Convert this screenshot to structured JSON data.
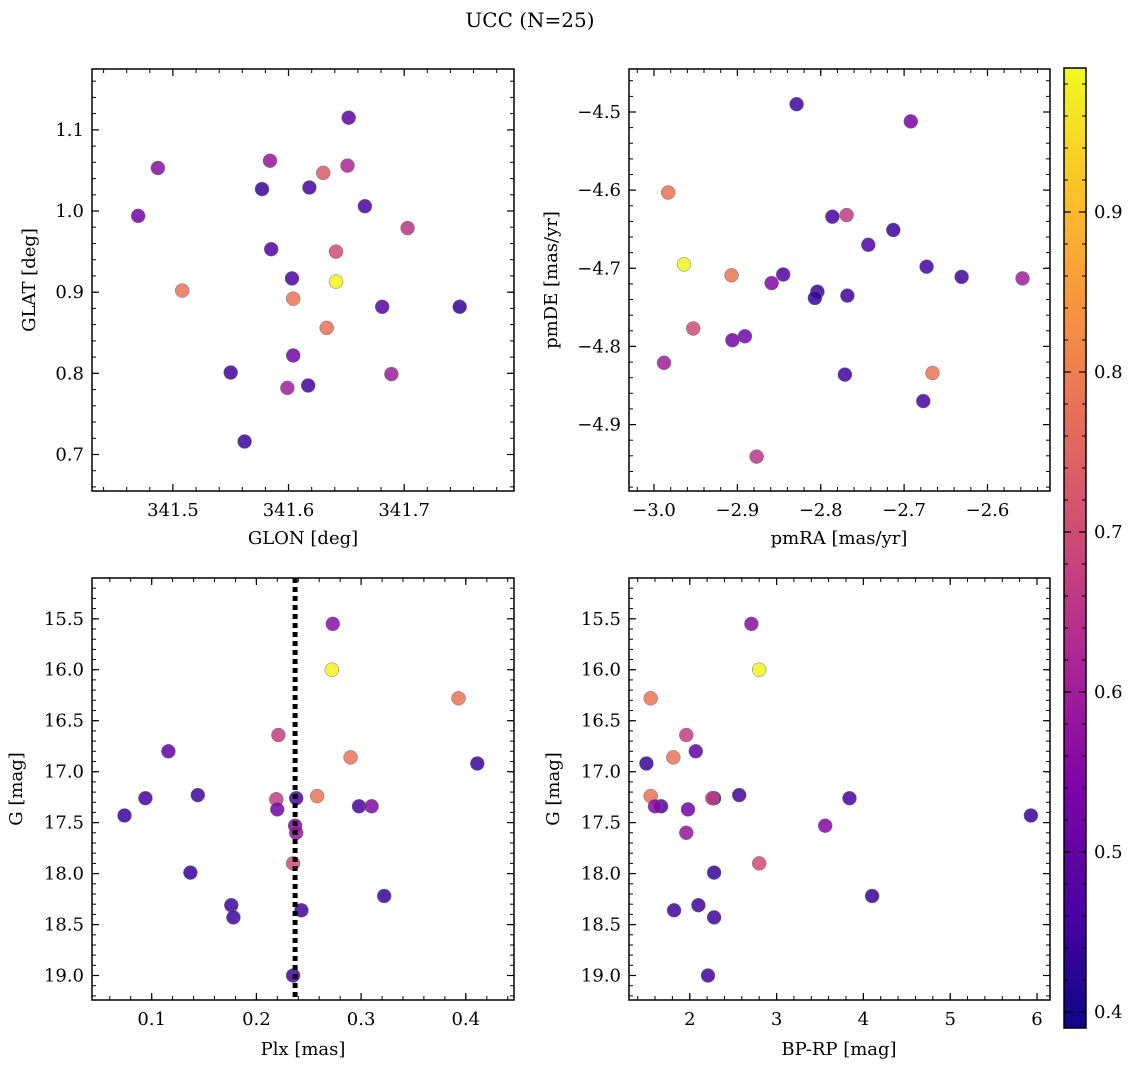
{
  "chart_data": [
    {
      "type": "scatter",
      "id": "p1",
      "title": "UCC (N=25)",
      "xlabel": "GLON [deg]",
      "ylabel": "GLAT [deg]",
      "xlim": [
        341.43,
        341.795
      ],
      "ylim": [
        0.655,
        1.175
      ],
      "xticks": [
        341.5,
        341.6,
        341.7
      ],
      "xticklabels": [
        "341.5",
        "341.6",
        "341.7"
      ],
      "yticks": [
        0.7,
        0.8,
        0.9,
        1.0,
        1.1
      ],
      "yticklabels": [
        "0.7",
        "0.8",
        "0.9",
        "1.0",
        "1.1"
      ],
      "x": [
        341.508,
        341.562,
        341.603,
        341.63,
        341.641,
        341.604,
        341.55,
        341.604,
        341.666,
        341.618,
        341.47,
        341.487,
        341.599,
        341.633,
        341.584,
        341.651,
        341.748,
        341.585,
        341.577,
        341.681,
        341.703,
        341.689,
        341.652,
        341.617,
        341.641
      ],
      "y": [
        0.902,
        0.716,
        0.917,
        1.047,
        0.913,
        0.892,
        0.801,
        0.822,
        1.006,
        1.029,
        0.994,
        1.053,
        0.782,
        0.856,
        1.062,
        1.056,
        0.882,
        0.953,
        1.027,
        0.882,
        0.979,
        0.799,
        1.115,
        0.785,
        0.95
      ],
      "prob": [
        0.78,
        0.44,
        0.47,
        0.73,
        0.98,
        0.78,
        0.45,
        0.52,
        0.46,
        0.46,
        0.52,
        0.56,
        0.6,
        0.77,
        0.58,
        0.62,
        0.43,
        0.47,
        0.44,
        0.48,
        0.65,
        0.6,
        0.49,
        0.45,
        0.7
      ]
    },
    {
      "type": "scatter",
      "id": "p2",
      "xlabel": "pmRA [mas/yr]",
      "ylabel": "pmDE [mas/yr]",
      "xlim": [
        -3.03,
        -2.525
      ],
      "ylim": [
        -4.985,
        -4.445
      ],
      "xticks": [
        -3.0,
        -2.9,
        -2.8,
        -2.7,
        -2.6
      ],
      "xticklabels": [
        "−3.0",
        "−2.9",
        "−2.8",
        "−2.7",
        "−2.6"
      ],
      "yticks": [
        -4.9,
        -4.8,
        -4.7,
        -4.6,
        -4.5
      ],
      "yticklabels": [
        "−4.9",
        "−4.8",
        "−4.7",
        "−4.6",
        "−4.5"
      ],
      "x": [
        -2.829,
        -2.692,
        -2.983,
        -2.786,
        -2.769,
        -2.713,
        -2.743,
        -2.964,
        -2.907,
        -2.673,
        -2.631,
        -2.558,
        -2.845,
        -2.859,
        -2.804,
        -2.807,
        -2.768,
        -2.953,
        -2.906,
        -2.891,
        -2.988,
        -2.771,
        -2.666,
        -2.677,
        -2.877
      ],
      "y": [
        -4.49,
        -4.512,
        -4.603,
        -4.634,
        -4.632,
        -4.651,
        -4.67,
        -4.695,
        -4.709,
        -4.698,
        -4.711,
        -4.713,
        -4.708,
        -4.719,
        -4.73,
        -4.738,
        -4.735,
        -4.777,
        -4.792,
        -4.787,
        -4.821,
        -4.836,
        -4.834,
        -4.87,
        -4.941
      ],
      "prob": [
        0.45,
        0.53,
        0.78,
        0.46,
        0.66,
        0.44,
        0.47,
        0.98,
        0.78,
        0.46,
        0.45,
        0.6,
        0.47,
        0.55,
        0.44,
        0.44,
        0.45,
        0.7,
        0.52,
        0.52,
        0.6,
        0.45,
        0.78,
        0.46,
        0.65
      ]
    },
    {
      "type": "scatter",
      "id": "p3",
      "xlabel": "Plx [mas]",
      "ylabel": "G [mag]",
      "xlim": [
        0.043,
        0.446
      ],
      "ylim": [
        19.24,
        15.1
      ],
      "xticks": [
        0.1,
        0.2,
        0.3,
        0.4
      ],
      "xticklabels": [
        "0.1",
        "0.2",
        "0.3",
        "0.4"
      ],
      "yticks": [
        15.5,
        16.0,
        16.5,
        17.0,
        17.5,
        18.0,
        18.5,
        19.0
      ],
      "yticklabels": [
        "15.5",
        "16.0",
        "16.5",
        "17.0",
        "17.5",
        "18.0",
        "18.5",
        "19.0"
      ],
      "vline": 0.237,
      "x": [
        0.273,
        0.272,
        0.393,
        0.221,
        0.116,
        0.411,
        0.29,
        0.144,
        0.094,
        0.258,
        0.219,
        0.238,
        0.074,
        0.22,
        0.298,
        0.31,
        0.237,
        0.238,
        0.235,
        0.137,
        0.176,
        0.322,
        0.243,
        0.178,
        0.235
      ],
      "y": [
        15.55,
        16.0,
        16.28,
        16.64,
        16.8,
        16.92,
        16.86,
        17.23,
        17.26,
        17.24,
        17.27,
        17.26,
        17.43,
        17.37,
        17.34,
        17.34,
        17.53,
        17.6,
        17.9,
        17.99,
        18.31,
        18.22,
        18.36,
        18.43,
        19.0
      ],
      "prob": [
        0.56,
        0.98,
        0.78,
        0.67,
        0.5,
        0.44,
        0.78,
        0.45,
        0.46,
        0.78,
        0.67,
        0.46,
        0.44,
        0.52,
        0.46,
        0.55,
        0.55,
        0.58,
        0.7,
        0.44,
        0.45,
        0.44,
        0.45,
        0.45,
        0.45
      ]
    },
    {
      "type": "scatter",
      "id": "p4",
      "xlabel": "BP-RP [mag]",
      "ylabel": "G [mag]",
      "xlim": [
        1.3,
        6.15
      ],
      "ylim": [
        19.24,
        15.1
      ],
      "xticks": [
        2,
        3,
        4,
        5,
        6
      ],
      "xticklabels": [
        "2",
        "3",
        "4",
        "5",
        "6"
      ],
      "yticks": [
        15.5,
        16.0,
        16.5,
        17.0,
        17.5,
        18.0,
        18.5,
        19.0
      ],
      "yticklabels": [
        "15.5",
        "16.0",
        "16.5",
        "17.0",
        "17.5",
        "18.0",
        "18.5",
        "19.0"
      ],
      "x": [
        2.71,
        2.8,
        1.55,
        1.96,
        2.07,
        1.5,
        1.81,
        2.57,
        1.55,
        2.28,
        2.26,
        3.84,
        5.93,
        1.98,
        1.67,
        1.6,
        3.56,
        1.96,
        2.8,
        2.28,
        2.1,
        4.1,
        1.82,
        2.28,
        2.21
      ],
      "y": [
        15.55,
        16.0,
        16.28,
        16.64,
        16.8,
        16.92,
        16.86,
        17.23,
        17.24,
        17.26,
        17.26,
        17.26,
        17.43,
        17.37,
        17.34,
        17.34,
        17.53,
        17.6,
        17.9,
        17.99,
        18.31,
        18.22,
        18.36,
        18.43,
        19.0
      ],
      "prob": [
        0.56,
        0.98,
        0.78,
        0.67,
        0.5,
        0.44,
        0.78,
        0.45,
        0.78,
        0.46,
        0.67,
        0.46,
        0.44,
        0.52,
        0.46,
        0.55,
        0.55,
        0.58,
        0.7,
        0.44,
        0.45,
        0.44,
        0.45,
        0.45,
        0.45
      ]
    }
  ],
  "colorbar": {
    "cmap": "plasma",
    "range": [
      0.39,
      0.99
    ],
    "ticks": [
      0.4,
      0.5,
      0.6,
      0.7,
      0.8,
      0.9
    ],
    "ticklabels": [
      "0.4",
      "0.5",
      "0.6",
      "0.7",
      "0.8",
      "0.9"
    ]
  }
}
